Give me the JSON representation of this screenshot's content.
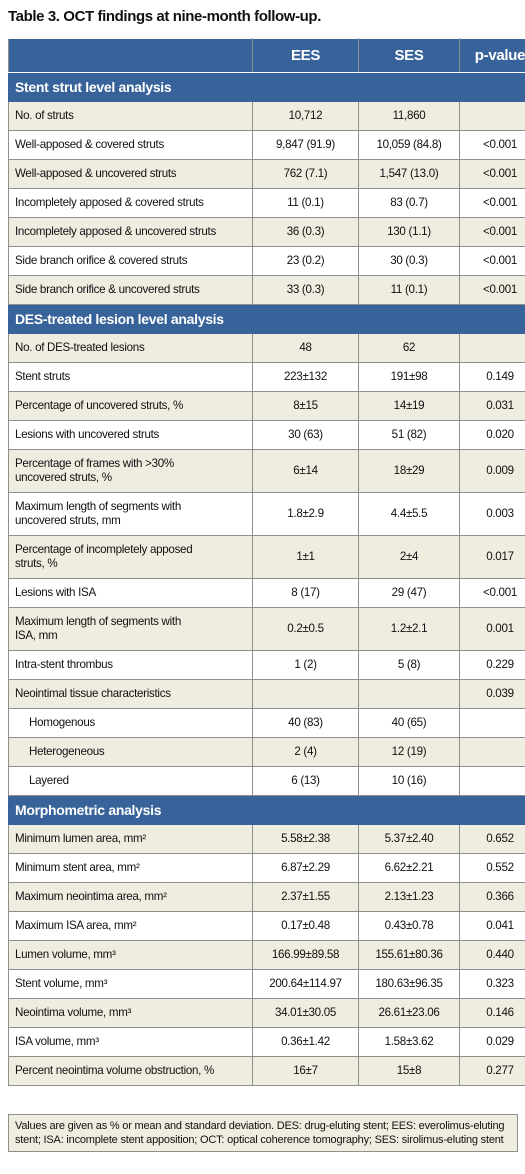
{
  "header": {
    "title": "Table 3. OCT findings at nine-month follow-up."
  },
  "table": {
    "columns": [
      "EES",
      "SES",
      "p-value"
    ],
    "sections": [
      {
        "title": "Stent strut level analysis",
        "rows": [
          {
            "label": [
              "No. of struts"
            ],
            "values": [
              "10,712",
              "11,860",
              null
            ]
          },
          {
            "label": [
              "Well-apposed & covered struts"
            ],
            "values": [
              "9,847 (91.9)",
              "10,059 (84.8)",
              "<0.001"
            ]
          },
          {
            "label": [
              "Well-apposed & uncovered struts"
            ],
            "values": [
              "762 (7.1)",
              "1,547 (13.0)",
              "<0.001"
            ]
          },
          {
            "label": [
              "Incompletely apposed & covered struts"
            ],
            "values": [
              "11 (0.1)",
              "83 (0.7)",
              "<0.001"
            ]
          },
          {
            "label": [
              "Incompletely apposed & uncovered struts"
            ],
            "values": [
              "36 (0.3)",
              "130 (1.1)",
              "<0.001"
            ]
          },
          {
            "label": [
              "Side branch orifice & covered struts"
            ],
            "values": [
              "23 (0.2)",
              "30 (0.3)",
              "<0.001"
            ]
          },
          {
            "label": [
              "Side branch orifice & uncovered struts"
            ],
            "values": [
              "33 (0.3)",
              "11 (0.1)",
              "<0.001"
            ]
          }
        ]
      },
      {
        "title": "DES-treated lesion level analysis",
        "rows": [
          {
            "label": [
              "No. of DES-treated lesions"
            ],
            "values": [
              "48",
              "62",
              null
            ]
          },
          {
            "label": [
              "Stent struts"
            ],
            "values": [
              "223±132",
              "191±98",
              "0.149"
            ]
          },
          {
            "label": [
              "Percentage of uncovered struts, %"
            ],
            "values": [
              "8±15",
              "14±19",
              "0.031"
            ]
          },
          {
            "label": [
              "Lesions with uncovered struts"
            ],
            "values": [
              "30 (63)",
              "51 (82)",
              "0.020"
            ]
          },
          {
            "label": [
              "Percentage of frames with >30%",
              "uncovered struts, %"
            ],
            "values": [
              "6±14",
              "18±29",
              "0.009"
            ]
          },
          {
            "label": [
              "Maximum length of segments with",
              "uncovered struts, mm"
            ],
            "values": [
              "1.8±2.9",
              "4.4±5.5",
              "0.003"
            ]
          },
          {
            "label": [
              "Percentage of incompletely apposed",
              "struts, %"
            ],
            "values": [
              "1±1",
              "2±4",
              "0.017"
            ]
          },
          {
            "label": [
              "Lesions with ISA"
            ],
            "values": [
              "8 (17)",
              "29 (47)",
              "<0.001"
            ]
          },
          {
            "label": [
              "Maximum length of segments with",
              "ISA, mm"
            ],
            "values": [
              "0.2±0.5",
              "1.2±2.1",
              "0.001"
            ]
          },
          {
            "label": [
              "Intra-stent thrombus"
            ],
            "values": [
              "1 (2)",
              "5 (8)",
              "0.229"
            ]
          },
          {
            "label": [
              "Neointimal tissue characteristics"
            ],
            "values": [
              null,
              null,
              "0.039"
            ],
            "subrows": [
              {
                "label": [
                  "Homogenous"
                ],
                "values": [
                  "40 (83)",
                  "40 (65)",
                  null
                ]
              },
              {
                "label": [
                  "Heterogeneous"
                ],
                "values": [
                  "2 (4)",
                  "12 (19)",
                  null
                ]
              },
              {
                "label": [
                  "Layered"
                ],
                "values": [
                  "6 (13)",
                  "10 (16)",
                  null
                ]
              }
            ]
          }
        ]
      },
      {
        "title": "Morphometric analysis",
        "rows": [
          {
            "label": [
              "Minimum lumen area, mm²"
            ],
            "values": [
              "5.58±2.38",
              "5.37±2.40",
              "0.652"
            ]
          },
          {
            "label": [
              "Minimum stent area, mm²"
            ],
            "values": [
              "6.87±2.29",
              "6.62±2.21",
              "0.552"
            ]
          },
          {
            "label": [
              "Maximum neointima area, mm²"
            ],
            "values": [
              "2.37±1.55",
              "2.13±1.23",
              "0.366"
            ]
          },
          {
            "label": [
              "Maximum ISA area, mm²"
            ],
            "values": [
              "0.17±0.48",
              "0.43±0.78",
              "0.041"
            ]
          },
          {
            "label": [
              "Lumen volume, mm³"
            ],
            "values": [
              "166.99±89.58",
              "155.61±80.36",
              "0.440"
            ]
          },
          {
            "label": [
              "Stent volume, mm³"
            ],
            "values": [
              "200.64±114.97",
              "180.63±96.35",
              "0.323"
            ]
          },
          {
            "label": [
              "Neointima volume, mm³"
            ],
            "values": [
              "34.01±30.05",
              "26.61±23.06",
              "0.146"
            ]
          },
          {
            "label": [
              "ISA volume, mm³"
            ],
            "values": [
              "0.36±1.42",
              "1.58±3.62",
              "0.029"
            ]
          },
          {
            "label": [
              "Percent neointima volume obstruction, %"
            ],
            "values": [
              "16±7",
              "15±8",
              "0.277"
            ]
          }
        ]
      }
    ]
  },
  "footnote": "Values are given as % or mean and standard deviation. DES: drug-eluting stent; EES: everolimus-eluting stent; ISA: incomplete stent apposition; OCT: optical coherence tomography; SES: sirolimus-eluting stent"
}
